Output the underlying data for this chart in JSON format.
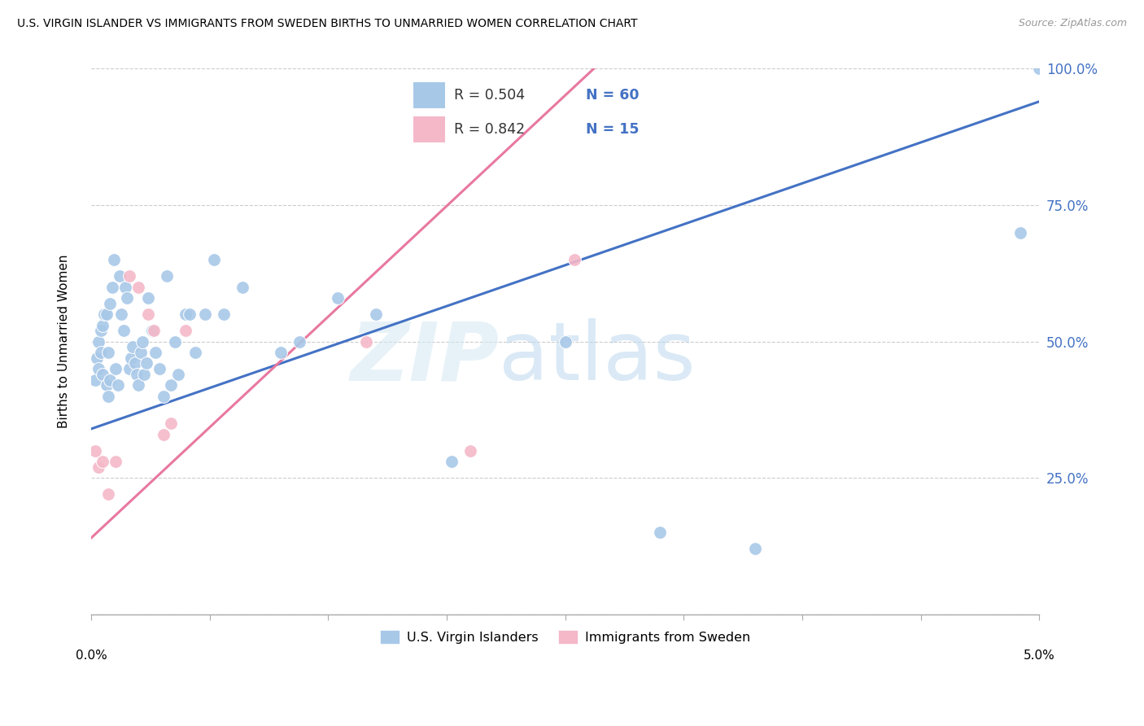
{
  "title": "U.S. VIRGIN ISLANDER VS IMMIGRANTS FROM SWEDEN BIRTHS TO UNMARRIED WOMEN CORRELATION CHART",
  "source": "Source: ZipAtlas.com",
  "ylabel": "Births to Unmarried Women",
  "xlim": [
    0.0,
    5.0
  ],
  "ylim": [
    0.0,
    100.0
  ],
  "blue_color": "#a8c8e8",
  "pink_color": "#f4b8c8",
  "blue_line_color": "#4472c4",
  "pink_line_color": "#e878a0",
  "watermark_zip_color": "#c8dff0",
  "watermark_atlas_color": "#b8d0e8",
  "blue_scatter_x": [
    0.02,
    0.03,
    0.04,
    0.04,
    0.05,
    0.05,
    0.06,
    0.06,
    0.07,
    0.08,
    0.08,
    0.09,
    0.09,
    0.1,
    0.1,
    0.11,
    0.12,
    0.13,
    0.14,
    0.15,
    0.16,
    0.17,
    0.18,
    0.19,
    0.2,
    0.21,
    0.22,
    0.23,
    0.24,
    0.25,
    0.26,
    0.27,
    0.28,
    0.29,
    0.3,
    0.32,
    0.34,
    0.36,
    0.38,
    0.4,
    0.42,
    0.44,
    0.46,
    0.5,
    0.52,
    0.55,
    0.6,
    0.65,
    0.7,
    0.8,
    1.0,
    1.1,
    1.3,
    1.5,
    1.9,
    2.5,
    3.0,
    3.5,
    4.9,
    5.0
  ],
  "blue_scatter_y": [
    43,
    47,
    45,
    50,
    48,
    52,
    44,
    53,
    55,
    42,
    55,
    40,
    48,
    43,
    57,
    60,
    65,
    45,
    42,
    62,
    55,
    52,
    60,
    58,
    45,
    47,
    49,
    46,
    44,
    42,
    48,
    50,
    44,
    46,
    58,
    52,
    48,
    45,
    40,
    62,
    42,
    50,
    44,
    55,
    55,
    48,
    55,
    65,
    55,
    60,
    48,
    50,
    58,
    55,
    28,
    50,
    15,
    12,
    70,
    100
  ],
  "pink_scatter_x": [
    0.02,
    0.04,
    0.06,
    0.09,
    0.13,
    0.2,
    0.25,
    0.3,
    0.33,
    0.38,
    0.42,
    0.5,
    1.45,
    2.0,
    2.55
  ],
  "pink_scatter_y": [
    30,
    27,
    28,
    22,
    28,
    62,
    60,
    55,
    52,
    33,
    35,
    52,
    50,
    30,
    65
  ],
  "blue_trend_x": [
    0.0,
    5.0
  ],
  "blue_trend_y": [
    34,
    94
  ],
  "pink_trend_x": [
    0.0,
    2.65
  ],
  "pink_trend_y": [
    14,
    100
  ]
}
